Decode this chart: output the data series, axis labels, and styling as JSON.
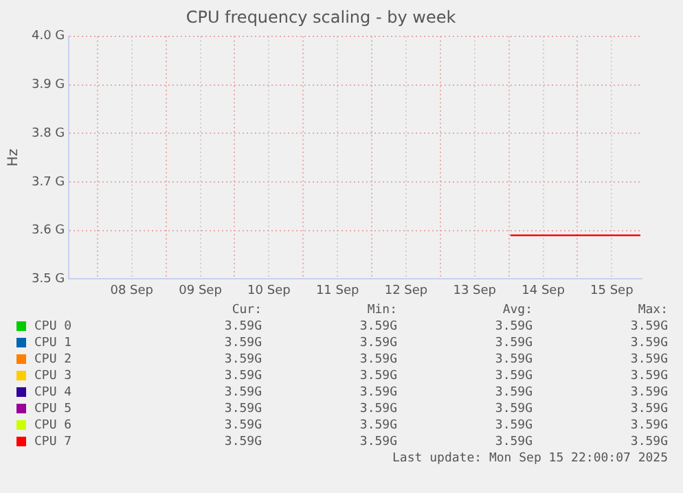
{
  "chart_data": {
    "type": "line",
    "title": "CPU frequency scaling - by week",
    "ylabel": "Hz",
    "xlim": [
      "2025-09-07T14:00",
      "2025-09-15T22:30"
    ],
    "xticks": [
      {
        "value": "2025-09-08T00:00",
        "label": null
      },
      {
        "value": "2025-09-08T12:00",
        "label": "08 Sep"
      },
      {
        "value": "2025-09-09T00:00",
        "label": null
      },
      {
        "value": "2025-09-09T12:00",
        "label": "09 Sep"
      },
      {
        "value": "2025-09-10T00:00",
        "label": null
      },
      {
        "value": "2025-09-10T12:00",
        "label": "10 Sep"
      },
      {
        "value": "2025-09-11T00:00",
        "label": null
      },
      {
        "value": "2025-09-11T12:00",
        "label": "11 Sep"
      },
      {
        "value": "2025-09-12T00:00",
        "label": null
      },
      {
        "value": "2025-09-12T12:00",
        "label": "12 Sep"
      },
      {
        "value": "2025-09-13T00:00",
        "label": null
      },
      {
        "value": "2025-09-13T12:00",
        "label": "13 Sep"
      },
      {
        "value": "2025-09-14T00:00",
        "label": null
      },
      {
        "value": "2025-09-14T12:00",
        "label": "14 Sep"
      },
      {
        "value": "2025-09-15T00:00",
        "label": null
      },
      {
        "value": "2025-09-15T12:00",
        "label": "15 Sep"
      }
    ],
    "ylim": [
      3.5,
      4.0
    ],
    "yticks": [
      {
        "value": 3.5,
        "label": "3.5 G"
      },
      {
        "value": 3.6,
        "label": "3.6 G"
      },
      {
        "value": 3.7,
        "label": "3.7 G"
      },
      {
        "value": 3.8,
        "label": "3.8 G"
      },
      {
        "value": 3.9,
        "label": "3.9 G"
      },
      {
        "value": 4.0,
        "label": "4.0 G"
      }
    ],
    "grid": true,
    "legend": "bottom",
    "marker": "none",
    "line_style": "solid",
    "series": [
      {
        "name": "CPU 0",
        "color": "#00cc00"
      },
      {
        "name": "CPU 1",
        "color": "#0066b3"
      },
      {
        "name": "CPU 2",
        "color": "#ff8000"
      },
      {
        "name": "CPU 3",
        "color": "#ffcc00"
      },
      {
        "name": "CPU 4",
        "color": "#330099"
      },
      {
        "name": "CPU 5",
        "color": "#990099"
      },
      {
        "name": "CPU 6",
        "color": "#ccff00"
      },
      {
        "name": "CPU 7",
        "color": "#ff0000",
        "x": [
          "2025-09-14T00:30",
          "2025-09-15T22:00"
        ],
        "values": [
          3.59,
          3.59
        ]
      }
    ],
    "annotations": [
      "Cur:",
      "Min:",
      "Avg:",
      "Max:",
      "3.59G",
      "3.59G",
      "3.59G",
      "3.59G",
      "3.59G",
      "3.59G",
      "3.59G",
      "3.59G",
      "3.59G",
      "3.59G",
      "3.59G",
      "3.59G",
      "3.59G",
      "3.59G",
      "3.59G",
      "3.59G",
      "3.59G",
      "3.59G",
      "3.59G",
      "3.59G",
      "3.59G",
      "3.59G",
      "3.59G",
      "3.59G",
      "3.59G",
      "3.59G",
      "3.59G",
      "3.59G",
      "3.59G",
      "3.59G",
      "3.59G",
      "3.59G",
      "Last update: Mon Sep 15 22:00:07 2025"
    ]
  }
}
